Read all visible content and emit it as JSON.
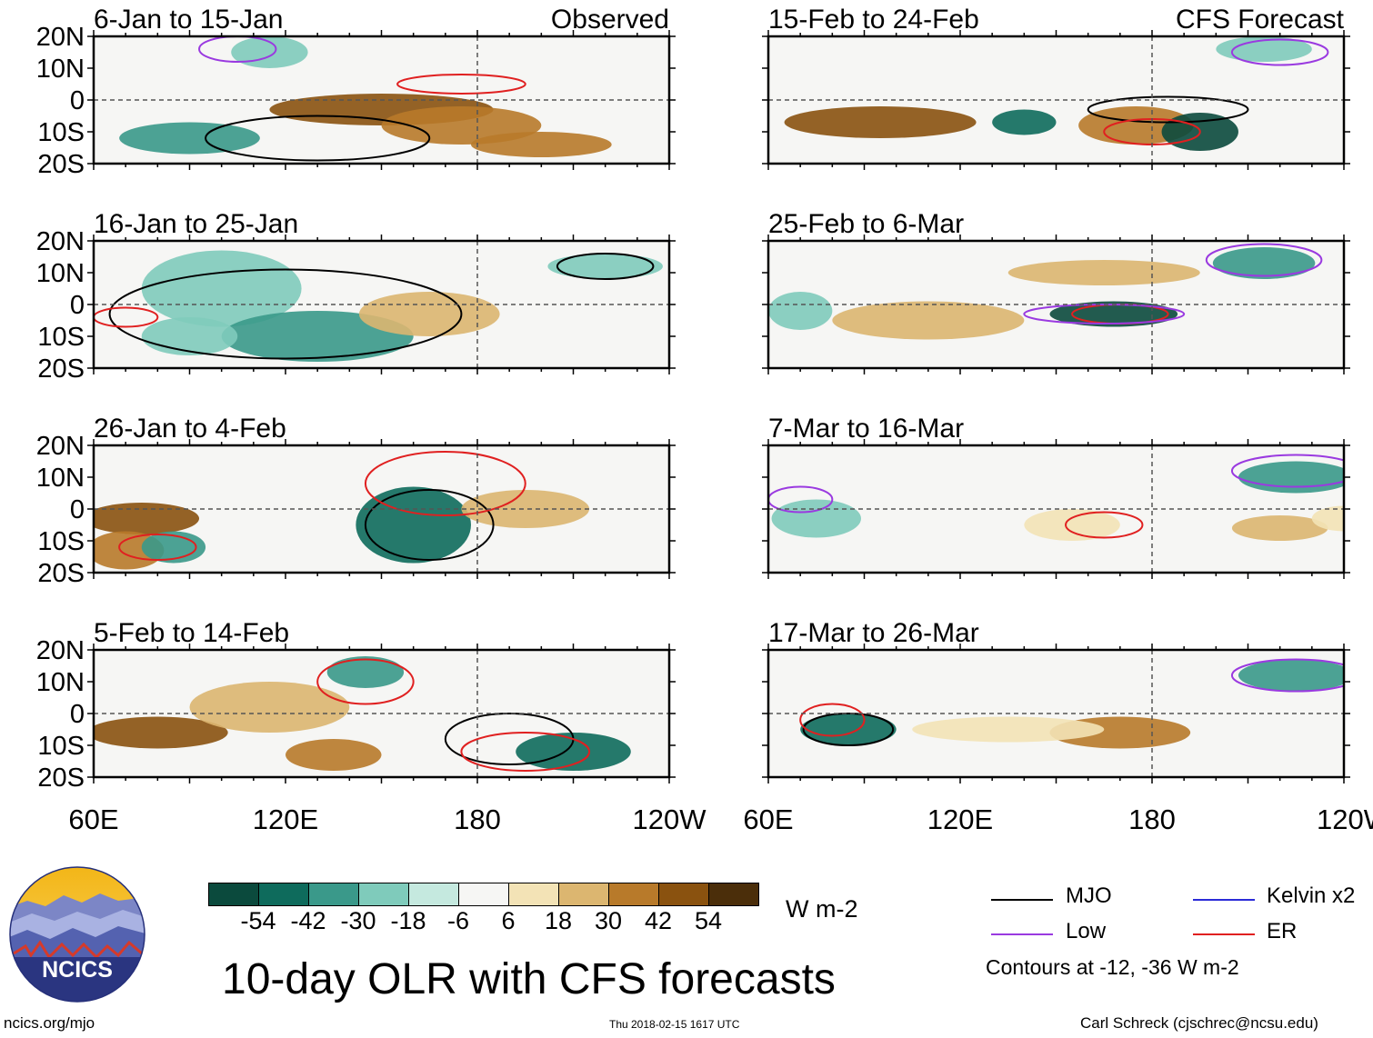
{
  "chart_data": {
    "type": "heatmap",
    "title": "10-day OLR with CFS forecasts",
    "columns": [
      {
        "header": "Observed",
        "panels": [
          "6-Jan to 15-Jan",
          "16-Jan to 25-Jan",
          "26-Jan to 4-Feb",
          "5-Feb to 14-Feb"
        ]
      },
      {
        "header": "CFS Forecast",
        "panels": [
          "15-Feb to 24-Feb",
          "25-Feb to 6-Mar",
          "7-Mar to 16-Mar",
          "17-Mar to 26-Mar"
        ]
      }
    ],
    "y_ticks": [
      "20N",
      "10N",
      "0",
      "10S",
      "20S"
    ],
    "x_ticks": [
      "60E",
      "120E",
      "180",
      "120W"
    ],
    "colorbar": {
      "units": "W m-2",
      "tick_labels": [
        "-54",
        "-42",
        "-30",
        "-18",
        "-6",
        "6",
        "18",
        "30",
        "42",
        "54"
      ],
      "colors": [
        "#0b4a3d",
        "#0e6b5c",
        "#3a998a",
        "#7fcbbb",
        "#c5e9df",
        "#f6f6f4",
        "#f3e3b6",
        "#dcb670",
        "#b87a2a",
        "#8a520f",
        "#4b2e0a"
      ]
    },
    "legend": [
      {
        "label": "MJO",
        "color": "#000000"
      },
      {
        "label": "Kelvin x2",
        "color": "#2b2bd8"
      },
      {
        "label": "Low",
        "color": "#9a3ae0"
      },
      {
        "label": "ER",
        "color": "#e02020"
      }
    ],
    "contour_note": "Contours at -12, -36 W m-2"
  },
  "branding": {
    "logo_text": "NCICS",
    "site": "ncics.org/mjo",
    "timestamp": "Thu 2018-02-15 1617 UTC",
    "credit": "Carl Schreck (cjschrec@ncsu.edu)"
  }
}
